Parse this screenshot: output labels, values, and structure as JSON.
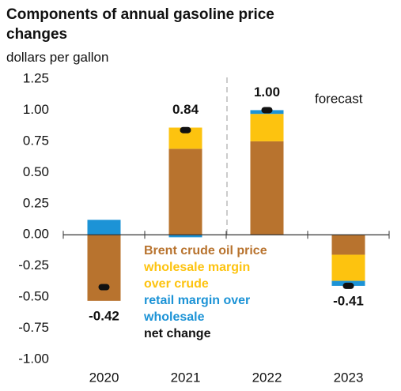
{
  "chart_data": {
    "type": "stacked-bar",
    "title": "Components of annual gasoline price changes",
    "subtitle": "dollars per gallon",
    "annotation": "forecast",
    "categories": [
      "2020",
      "2021",
      "2022",
      "2023"
    ],
    "series": [
      {
        "name": "Brent crude oil price",
        "color": "#b8732e",
        "values": [
          -0.53,
          0.69,
          0.75,
          -0.16
        ]
      },
      {
        "name": "wholesale margin over crude",
        "color": "#fdc30f",
        "values": [
          0,
          0.17,
          0.22,
          -0.21
        ]
      },
      {
        "name": "retail margin over wholesale",
        "color": "#1c93d6",
        "values": [
          0.12,
          -0.02,
          0.03,
          -0.04
        ]
      }
    ],
    "net": {
      "name": "net change",
      "color": "#111111",
      "values": [
        -0.42,
        0.84,
        1.0,
        -0.41
      ],
      "value_labels": [
        "-0.42",
        "0.84",
        "1.00",
        "-0.41"
      ]
    },
    "ylim": [
      -1.0,
      1.25
    ],
    "yticks": [
      {
        "value": -1.0,
        "label": "-1.00"
      },
      -0.75,
      {
        "value": -0.5,
        "label": "-0.50"
      },
      -0.25,
      {
        "value": 0,
        "label": "0.00"
      },
      0.25,
      {
        "value": 0.5,
        "label": "0.50"
      },
      0.75,
      {
        "value": 1.0,
        "label": "1.00"
      },
      1.25
    ]
  }
}
